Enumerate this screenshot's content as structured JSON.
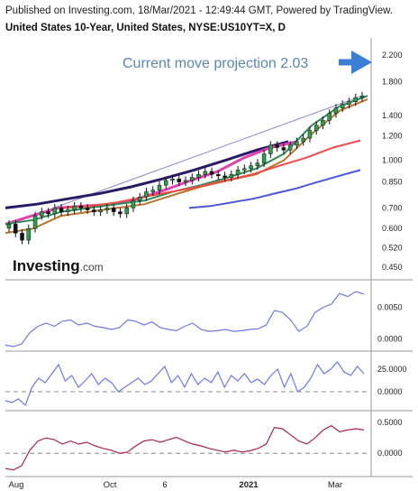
{
  "header": {
    "published": "Published on Investing.com, 18/Mar/2021 - 12:49:44 GMT, Powered by TradingView.",
    "title": "United States 10-Year, United States, NYSE:US10YT=X, D"
  },
  "logo": {
    "text": "Investing",
    "suffix": ".com"
  },
  "annotation": {
    "text": "Current move projection 2.03",
    "color": "#5b86b2",
    "arrow_color": "#3a7fd5",
    "arrow_icon": "right-arrow-icon"
  },
  "chart_data": [
    {
      "type": "line",
      "subtype": "candlestick",
      "scale": "log",
      "y_ticks": [
        "2.200",
        "1.800",
        "1.400",
        "1.200",
        "1.000",
        "0.850",
        "0.700",
        "0.600",
        "0.520",
        "0.450"
      ],
      "y_tick_values": [
        2.2,
        1.8,
        1.4,
        1.2,
        1.0,
        0.85,
        0.7,
        0.6,
        0.52,
        0.45
      ],
      "ylim": [
        0.42,
        2.5
      ],
      "x_ticks": [
        "Aug",
        "Oct",
        "6",
        "2021",
        "Mar"
      ],
      "candle_close_approx": [
        0.62,
        0.58,
        0.55,
        0.6,
        0.66,
        0.68,
        0.67,
        0.7,
        0.68,
        0.69,
        0.71,
        0.7,
        0.69,
        0.68,
        0.69,
        0.7,
        0.68,
        0.67,
        0.7,
        0.74,
        0.76,
        0.79,
        0.8,
        0.83,
        0.86,
        0.87,
        0.85,
        0.86,
        0.88,
        0.9,
        0.92,
        0.9,
        0.89,
        0.88,
        0.9,
        0.93,
        0.94,
        0.96,
        0.98,
        1.05,
        1.12,
        1.1,
        1.08,
        1.12,
        1.15,
        1.18,
        1.25,
        1.3,
        1.35,
        1.42,
        1.48,
        1.52,
        1.55,
        1.6,
        1.62
      ],
      "series": [
        {
          "color": "#2b1b66",
          "values": [
            0.7,
            0.72,
            0.75,
            0.78,
            0.82,
            0.87,
            0.93,
            1.0,
            1.08,
            1.15
          ]
        },
        {
          "color": "#e040b0",
          "values": [
            0.62,
            0.66,
            0.7,
            0.71,
            0.72,
            0.75,
            0.8,
            0.86,
            0.92,
            1.02,
            1.1,
            1.15
          ]
        },
        {
          "color": "#2e8b57",
          "values": [
            0.62,
            0.64,
            0.68,
            0.7,
            0.72,
            0.74,
            0.79,
            0.83,
            0.88,
            0.94,
            1.05,
            1.3,
            1.5,
            1.62
          ]
        },
        {
          "color": "#b8742a",
          "values": [
            0.58,
            0.6,
            0.66,
            0.68,
            0.7,
            0.72,
            0.77,
            0.82,
            0.86,
            0.9,
            1.0,
            1.22,
            1.45,
            1.58
          ]
        },
        {
          "color": "#f04a4a",
          "values": [
            0.7,
            0.71,
            0.73,
            0.76,
            0.79,
            0.82,
            0.86,
            0.9,
            0.96,
            1.02,
            1.1,
            1.16
          ]
        },
        {
          "color": "#4a55d8",
          "values": [
            0.7,
            0.71,
            0.73,
            0.75,
            0.78,
            0.81,
            0.85,
            0.89,
            0.93
          ]
        }
      ],
      "trendline_color": "#8888cc"
    },
    {
      "type": "line",
      "y_ticks": [
        "0.0050",
        "0.0000"
      ],
      "y_tick_values": [
        0.005,
        0.0
      ],
      "ylim": [
        -0.0015,
        0.0085
      ],
      "series": [
        {
          "color": "#6d78e8",
          "values": [
            -0.001,
            -0.0012,
            -0.0008,
            0.001,
            0.002,
            0.0025,
            0.002,
            0.0028,
            0.003,
            0.0022,
            0.0025,
            0.002,
            0.0018,
            0.0015,
            0.0018,
            0.003,
            0.0028,
            0.0022,
            0.0027,
            0.0018,
            0.0015,
            0.0013,
            0.002,
            0.0025,
            0.0015,
            0.0012,
            0.0013,
            0.0015,
            0.0012,
            0.0013,
            0.0015,
            0.0016,
            0.0022,
            0.0045,
            0.0042,
            0.003,
            0.0012,
            0.002,
            0.0042,
            0.005,
            0.0055,
            0.0072,
            0.0067,
            0.0075,
            0.0071
          ]
        }
      ]
    },
    {
      "type": "line",
      "y_ticks": [
        "25.0000",
        "0.0000"
      ],
      "y_tick_values": [
        25,
        0
      ],
      "ylim": [
        -18,
        42
      ],
      "baseline_dashed": 0,
      "series": [
        {
          "color": "#6d78e8",
          "values": [
            -10,
            -12,
            -8,
            -15,
            5,
            15,
            10,
            20,
            30,
            12,
            18,
            5,
            12,
            20,
            8,
            15,
            10,
            0,
            5,
            10,
            15,
            8,
            12,
            20,
            28,
            10,
            18,
            5,
            20,
            8,
            15,
            10,
            22,
            5,
            18,
            12,
            20,
            10,
            14,
            8,
            18,
            25,
            5,
            20,
            0,
            5,
            15,
            30,
            20,
            25,
            33,
            22,
            18,
            28,
            20
          ]
        }
      ]
    },
    {
      "type": "line",
      "y_ticks": [
        "0.5000",
        "0.0000"
      ],
      "y_tick_values": [
        0.5,
        0
      ],
      "ylim": [
        -0.35,
        0.65
      ],
      "baseline_dashed": 0,
      "series": [
        {
          "color": "#b0204a",
          "values": [
            -0.25,
            -0.27,
            -0.2,
            0.05,
            0.2,
            0.25,
            0.22,
            0.15,
            0.2,
            0.15,
            0.18,
            0.12,
            0.08,
            0.05,
            0.0,
            0.02,
            0.12,
            0.2,
            0.22,
            0.18,
            0.22,
            0.26,
            0.2,
            0.15,
            0.12,
            0.08,
            0.05,
            0.02,
            0.05,
            0.02,
            0.04,
            0.08,
            0.15,
            0.42,
            0.4,
            0.3,
            0.2,
            0.15,
            0.25,
            0.38,
            0.45,
            0.35,
            0.38,
            0.4,
            0.38
          ]
        }
      ]
    }
  ]
}
